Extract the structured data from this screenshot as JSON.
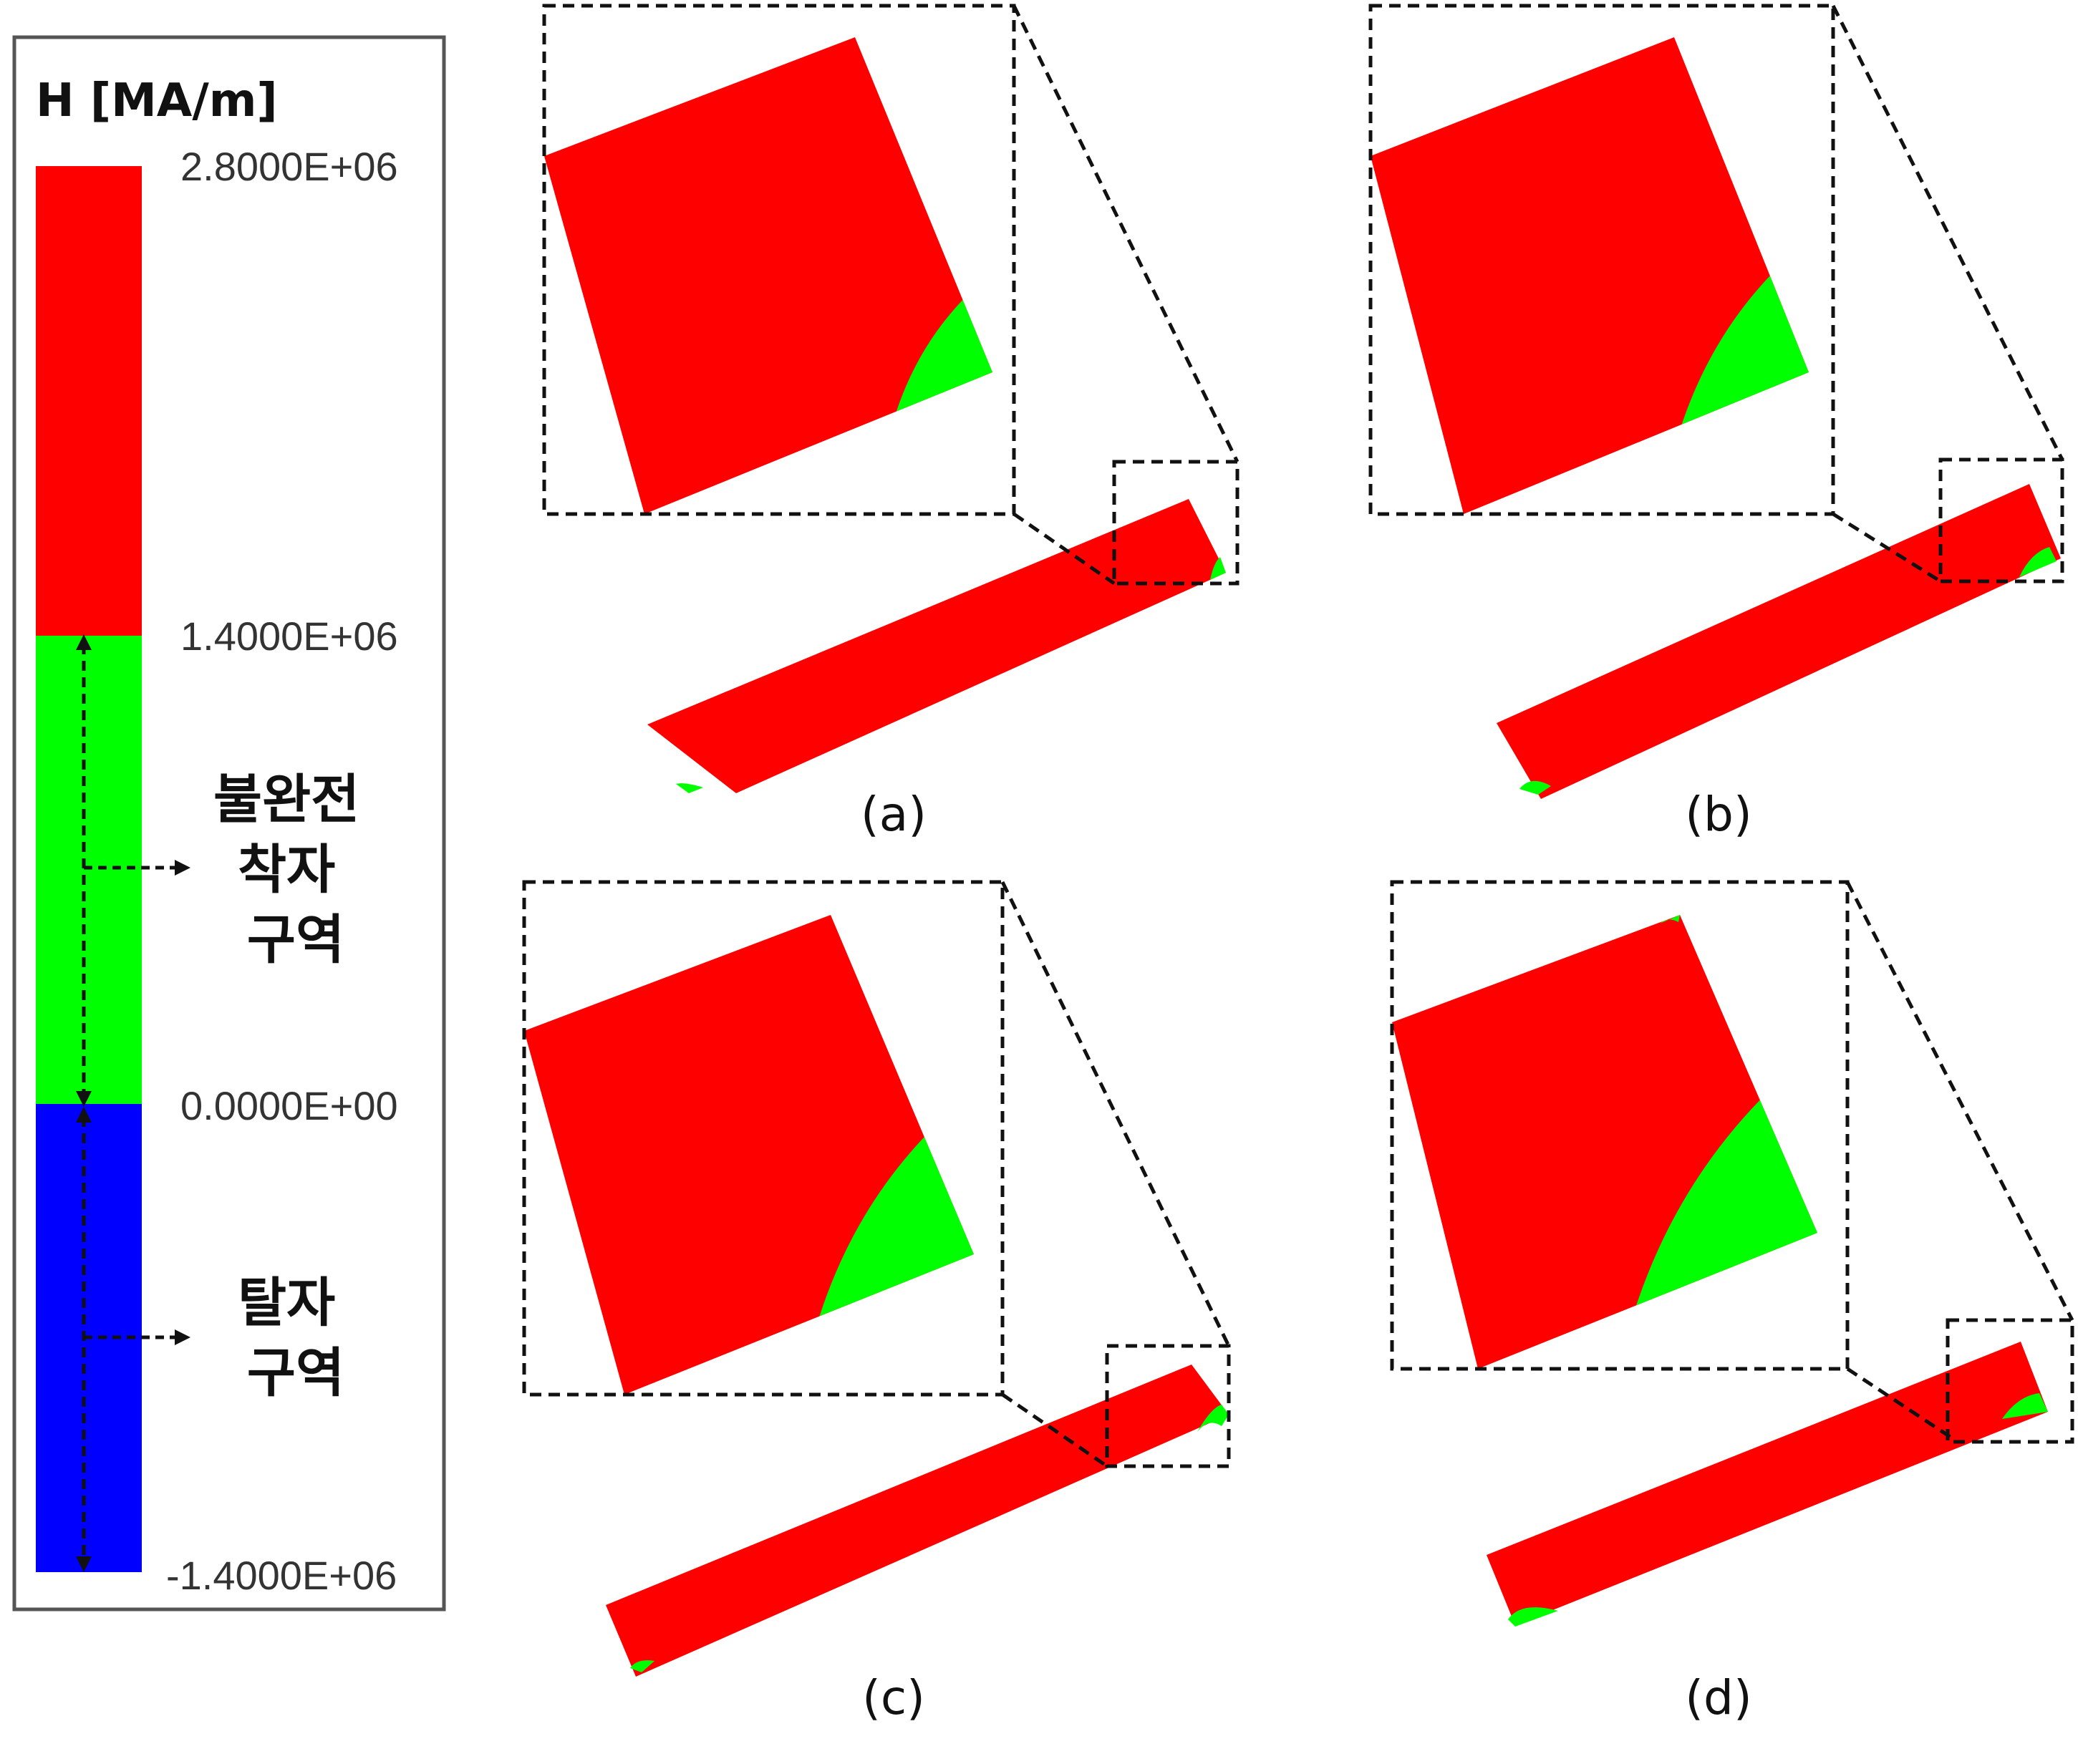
{
  "colors": {
    "red": "#ff0000",
    "green": "#00ff00",
    "blue": "#0000ff",
    "frame": "#555555"
  },
  "legend": {
    "title": "H  [MA/m]",
    "ticks": [
      "2.8000E+06",
      "1.4000E+06",
      "0.0000E+00",
      "-1.4000E+06"
    ],
    "bands": [
      {
        "from": 1400000.0,
        "to": 2800000.0,
        "color": "red"
      },
      {
        "from": 0.0,
        "to": 1400000.0,
        "color": "green"
      },
      {
        "from": -1400000.0,
        "to": 0.0,
        "color": "blue"
      }
    ],
    "zone_incomplete": [
      "불완전",
      "착자",
      "구역"
    ],
    "zone_demag": [
      "탈자",
      "구역"
    ]
  },
  "panels": [
    {
      "caption": "(a)",
      "green_extent": 0.3
    },
    {
      "caption": "(b)",
      "green_extent": 0.4
    },
    {
      "caption": "(c)",
      "green_extent": 0.48
    },
    {
      "caption": "(d)",
      "green_extent": 0.58
    }
  ]
}
